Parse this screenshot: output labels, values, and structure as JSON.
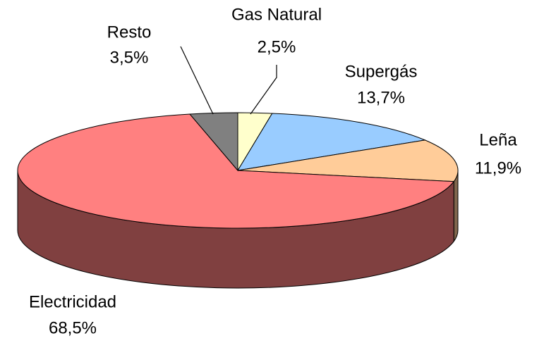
{
  "chart_data": {
    "type": "pie",
    "categories": [
      "Gas Natural",
      "Supergás",
      "Leña",
      "Electricidad",
      "Resto"
    ],
    "values": [
      2.5,
      13.7,
      11.9,
      68.5,
      3.5
    ],
    "value_labels": [
      "2,5%",
      "13,7%",
      "11,9%",
      "68,5%",
      "3,5%"
    ],
    "colors": [
      "#ffffcc",
      "#99ccff",
      "#ffcc99",
      "#ff8080",
      "#808080"
    ]
  }
}
